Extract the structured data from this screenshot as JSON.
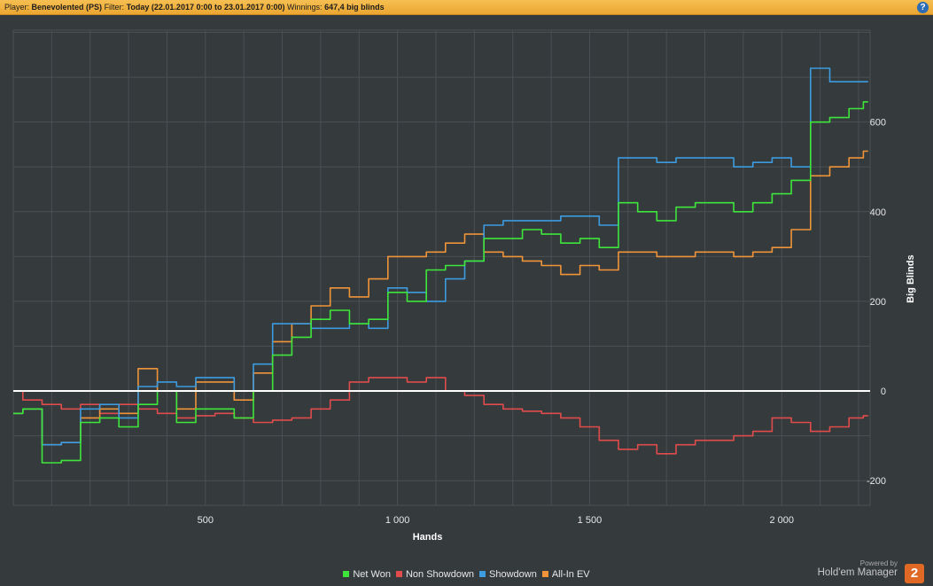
{
  "header": {
    "player_label": "Player:",
    "player_value": "Benevolented (PS)",
    "filter_label": "Filter:",
    "filter_value": "Today (22.01.2017 0:00 to 23.01.2017 0:00)",
    "winnings_label": "Winnings:",
    "winnings_value": "647,4 big blinds",
    "help_label": "?"
  },
  "branding": {
    "powered_by": "Powered by",
    "product": "Hold'em Manager",
    "logo_text": "2"
  },
  "colors": {
    "background": "#353a3d",
    "grid": "#4b5053",
    "zero_line": "#ffffff",
    "net_won": "#3ee53a",
    "non_showdown": "#e04c4c",
    "showdown": "#3d9be0",
    "all_in_ev": "#ef9438"
  },
  "chart_data": {
    "type": "line",
    "xlabel": "Hands",
    "ylabel": "Big Blinds",
    "xlim": [
      0,
      2230
    ],
    "ylim": [
      -255,
      805
    ],
    "x_ticks": [
      500,
      1000,
      1500,
      2000
    ],
    "x_tick_labels": [
      "500",
      "1 000",
      "1 500",
      "2 000"
    ],
    "y_ticks": [
      -200,
      0,
      200,
      400,
      600
    ],
    "y_tick_labels": [
      "-200",
      "0",
      "200",
      "400",
      "600"
    ],
    "grid": true,
    "legend_position": "bottom",
    "x": [
      0,
      50,
      100,
      150,
      200,
      250,
      300,
      350,
      400,
      450,
      500,
      550,
      600,
      650,
      700,
      750,
      800,
      850,
      900,
      950,
      1000,
      1050,
      1100,
      1150,
      1200,
      1250,
      1300,
      1350,
      1400,
      1450,
      1500,
      1550,
      1600,
      1650,
      1700,
      1750,
      1800,
      1850,
      1900,
      1950,
      2000,
      2050,
      2100,
      2150,
      2200,
      2225
    ],
    "series": [
      {
        "name": "Net Won",
        "key": "net_won",
        "values": [
          -50,
          -40,
          -160,
          -155,
          -70,
          -60,
          -80,
          -30,
          0,
          -70,
          -40,
          -40,
          -60,
          0,
          80,
          120,
          160,
          180,
          150,
          160,
          220,
          200,
          270,
          280,
          290,
          340,
          340,
          360,
          350,
          330,
          340,
          320,
          420,
          400,
          380,
          410,
          420,
          420,
          400,
          420,
          440,
          470,
          600,
          610,
          630,
          645
        ]
      },
      {
        "name": "Non Showdown",
        "key": "non_showdown",
        "values": [
          0,
          -20,
          -30,
          -40,
          -30,
          -50,
          -30,
          -40,
          -50,
          -60,
          -55,
          -50,
          -60,
          -70,
          -65,
          -60,
          -40,
          -20,
          20,
          30,
          30,
          20,
          30,
          0,
          -10,
          -30,
          -40,
          -45,
          -50,
          -60,
          -80,
          -110,
          -130,
          -120,
          -140,
          -120,
          -110,
          -110,
          -100,
          -90,
          -60,
          -70,
          -90,
          -80,
          -60,
          -55
        ]
      },
      {
        "name": "Showdown",
        "key": "showdown",
        "values": [
          -50,
          -40,
          -120,
          -115,
          -40,
          -30,
          -60,
          10,
          20,
          10,
          30,
          30,
          0,
          60,
          150,
          150,
          140,
          140,
          150,
          140,
          230,
          220,
          200,
          250,
          290,
          370,
          380,
          380,
          380,
          390,
          390,
          370,
          520,
          520,
          510,
          520,
          520,
          520,
          500,
          510,
          520,
          500,
          720,
          690,
          690,
          690
        ]
      },
      {
        "name": "All-In EV",
        "key": "all_in_ev",
        "values": [
          -50,
          -40,
          -120,
          -115,
          -60,
          -40,
          -50,
          50,
          0,
          -40,
          20,
          20,
          -20,
          40,
          110,
          150,
          190,
          230,
          210,
          250,
          300,
          300,
          310,
          330,
          350,
          310,
          300,
          290,
          280,
          260,
          280,
          270,
          310,
          310,
          300,
          300,
          310,
          310,
          300,
          310,
          320,
          360,
          480,
          500,
          520,
          535
        ]
      }
    ]
  }
}
